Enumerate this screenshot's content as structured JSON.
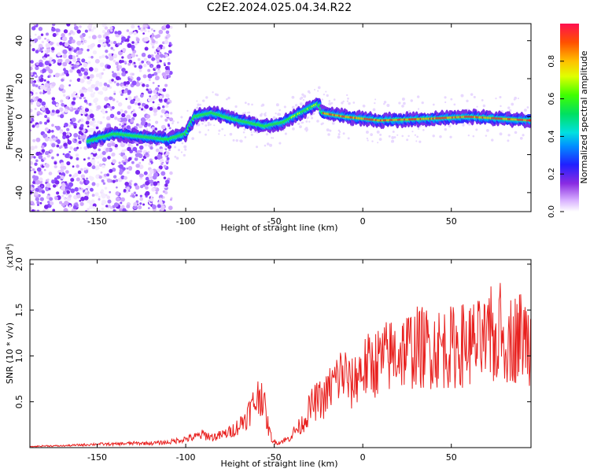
{
  "title": "C2E2.2024.025.04.34.R22",
  "chart_data": [
    {
      "type": "heatmap",
      "xlabel": "Height of straight line (km)",
      "ylabel": "Frequency (Hz)",
      "xlim": [
        -188,
        95
      ],
      "ylim": [
        -50,
        49
      ],
      "x_ticks": [
        {
          "v": -150,
          "label": "-150"
        },
        {
          "v": -100,
          "label": "-100"
        },
        {
          "v": -50,
          "label": "-50"
        },
        {
          "v": 0,
          "label": "0"
        },
        {
          "v": 50,
          "label": "50"
        }
      ],
      "y_ticks": [
        {
          "v": -40,
          "label": "-40"
        },
        {
          "v": -20,
          "label": "-20"
        },
        {
          "v": 0,
          "label": "0"
        },
        {
          "v": 20,
          "label": "20"
        },
        {
          "v": 40,
          "label": "40"
        }
      ],
      "ridge": [
        {
          "x": -155,
          "y": -13
        },
        {
          "x": -140,
          "y": -9
        },
        {
          "x": -120,
          "y": -11
        },
        {
          "x": -110,
          "y": -12
        },
        {
          "x": -100,
          "y": -9
        },
        {
          "x": -95,
          "y": 0
        },
        {
          "x": -85,
          "y": 2
        },
        {
          "x": -70,
          "y": -2
        },
        {
          "x": -55,
          "y": -5
        },
        {
          "x": -45,
          "y": -3
        },
        {
          "x": -35,
          "y": 2
        },
        {
          "x": -25,
          "y": 7
        },
        {
          "x": -23,
          "y": 2
        },
        {
          "x": -10,
          "y": 0
        },
        {
          "x": 10,
          "y": -2
        },
        {
          "x": 40,
          "y": -1
        },
        {
          "x": 60,
          "y": 0
        },
        {
          "x": 95,
          "y": -2
        }
      ],
      "colorbar": {
        "label": "Normalized spectral amplitude",
        "range": [
          0,
          1
        ],
        "ticks": [
          {
            "v": 0,
            "label": "0.0"
          },
          {
            "v": 0.2,
            "label": "0.2"
          },
          {
            "v": 0.4,
            "label": "0.4"
          },
          {
            "v": 0.6,
            "label": "0.6"
          },
          {
            "v": 0.8,
            "label": "0.8"
          }
        ]
      }
    },
    {
      "type": "line",
      "xlabel": "Height of straight line (km)",
      "ylabel": "SNR (10 * v/v)",
      "y_multiplier": "(x10",
      "y_multiplier_exp": "4",
      "y_multiplier_close": ")",
      "xlim": [
        -188,
        95
      ],
      "ylim": [
        0,
        2.05
      ],
      "x_ticks": [
        {
          "v": -150,
          "label": "-150"
        },
        {
          "v": -100,
          "label": "-100"
        },
        {
          "v": -50,
          "label": "-50"
        },
        {
          "v": 0,
          "label": "0"
        },
        {
          "v": 50,
          "label": "50"
        }
      ],
      "y_ticks": [
        {
          "v": 0.5,
          "label": "0.5"
        },
        {
          "v": 1.0,
          "label": "1.0"
        },
        {
          "v": 1.5,
          "label": "1.5"
        },
        {
          "v": 2.0,
          "label": "2.0"
        }
      ],
      "color": "#e8201e",
      "series": [
        {
          "x": [
            -188,
            -180,
            -170,
            -160,
            -150,
            -140,
            -130,
            -120,
            -110,
            -105,
            -100,
            -95,
            -90,
            -85,
            -80,
            -75,
            -70,
            -66,
            -63,
            -60,
            -57,
            -55,
            -53,
            -51,
            -49,
            -47,
            -45,
            -42,
            -40,
            -38,
            -35,
            -32,
            -30,
            -28,
            -25,
            -22,
            -20,
            -18,
            -15,
            -12,
            -10,
            -7,
            -5,
            -3,
            0,
            5,
            10,
            15,
            20,
            30,
            40,
            50,
            60,
            70,
            80,
            85,
            90,
            95
          ],
          "y": [
            0.01,
            0.02,
            0.02,
            0.03,
            0.04,
            0.04,
            0.05,
            0.05,
            0.06,
            0.08,
            0.1,
            0.12,
            0.15,
            0.12,
            0.14,
            0.18,
            0.25,
            0.35,
            0.45,
            0.55,
            0.65,
            0.4,
            0.2,
            0.08,
            0.06,
            0.06,
            0.08,
            0.1,
            0.15,
            0.2,
            0.25,
            0.35,
            0.45,
            0.5,
            0.55,
            0.55,
            0.62,
            0.7,
            0.78,
            0.85,
            0.85,
            0.7,
            0.75,
            0.85,
            0.9,
            0.95,
            1.0,
            1.05,
            1.1,
            1.15,
            1.15,
            1.15,
            1.2,
            1.2,
            1.25,
            1.25,
            1.3,
            1.2
          ]
        }
      ]
    }
  ]
}
